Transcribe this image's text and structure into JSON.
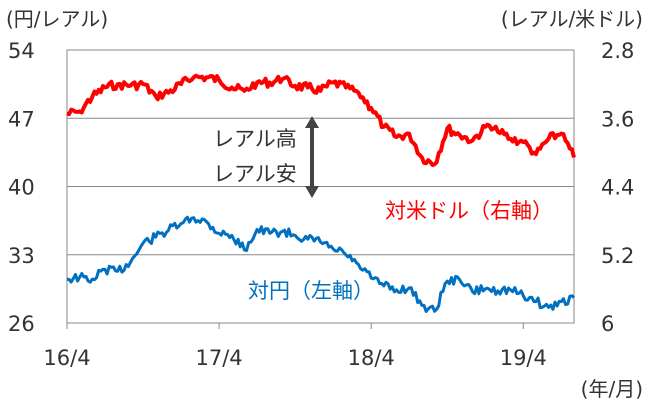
{
  "chart_data": {
    "type": "line",
    "left_unit": "(円/レアル)",
    "right_unit": "(レアル/米ドル)",
    "x_unit": "(年/月)",
    "x_ticks": [
      "16/4",
      "17/4",
      "18/4",
      "19/4"
    ],
    "y_left": {
      "ticks": [
        "54",
        "47",
        "40",
        "33",
        "26"
      ],
      "range": [
        26,
        54
      ]
    },
    "y_right": {
      "ticks": [
        "2.8",
        "3.6",
        "4.4",
        "5.2",
        "6"
      ],
      "range": [
        2.8,
        6.0
      ],
      "inverted": true
    },
    "grid": true,
    "annotation": {
      "upper": "レアル高",
      "lower": "レアル安"
    },
    "series": [
      {
        "name": "対米ドル（右軸）",
        "axis": "right",
        "color": "#ff0000",
        "x": [
          "2016-04",
          "2016-05",
          "2016-06",
          "2016-07",
          "2016-08",
          "2016-09",
          "2016-10",
          "2016-11",
          "2016-12",
          "2017-01",
          "2017-02",
          "2017-03",
          "2017-04",
          "2017-05",
          "2017-06",
          "2017-07",
          "2017-08",
          "2017-09",
          "2017-10",
          "2017-11",
          "2017-12",
          "2018-01",
          "2018-02",
          "2018-03",
          "2018-04",
          "2018-05",
          "2018-06",
          "2018-07",
          "2018-08",
          "2018-09",
          "2018-10",
          "2018-11",
          "2018-12",
          "2019-01",
          "2019-02",
          "2019-03",
          "2019-04",
          "2019-05",
          "2019-06",
          "2019-07",
          "2019-08"
        ],
        "values": [
          3.55,
          3.52,
          3.35,
          3.24,
          3.2,
          3.22,
          3.2,
          3.34,
          3.3,
          3.2,
          3.12,
          3.12,
          3.15,
          3.24,
          3.28,
          3.18,
          3.18,
          3.14,
          3.22,
          3.24,
          3.28,
          3.18,
          3.24,
          3.3,
          3.48,
          3.7,
          3.82,
          3.78,
          4.06,
          4.14,
          3.72,
          3.8,
          3.86,
          3.7,
          3.76,
          3.84,
          3.88,
          4.02,
          3.84,
          3.78,
          4.06
        ]
      },
      {
        "name": "対円（左軸）",
        "axis": "left",
        "color": "#0070c0",
        "x": [
          "2016-04",
          "2016-05",
          "2016-06",
          "2016-07",
          "2016-08",
          "2016-09",
          "2016-10",
          "2016-11",
          "2016-12",
          "2017-01",
          "2017-02",
          "2017-03",
          "2017-04",
          "2017-05",
          "2017-06",
          "2017-07",
          "2017-08",
          "2017-09",
          "2017-10",
          "2017-11",
          "2017-12",
          "2018-01",
          "2018-02",
          "2018-03",
          "2018-04",
          "2018-05",
          "2018-06",
          "2018-07",
          "2018-08",
          "2018-09",
          "2018-10",
          "2018-11",
          "2018-12",
          "2019-01",
          "2019-02",
          "2019-03",
          "2019-04",
          "2019-05",
          "2019-06",
          "2019-07",
          "2019-08"
        ],
        "values": [
          30.5,
          30.7,
          30.5,
          31.5,
          31.3,
          32.2,
          34.2,
          34.8,
          35.5,
          36.2,
          36.8,
          36.4,
          35.2,
          35.0,
          33.5,
          35.6,
          35.2,
          35.4,
          35.0,
          34.6,
          34.3,
          33.6,
          33.0,
          32.0,
          30.6,
          29.8,
          29.4,
          29.6,
          27.8,
          27.2,
          30.3,
          30.4,
          29.2,
          29.5,
          29.3,
          29.4,
          28.8,
          28.2,
          27.6,
          28.2,
          28.6
        ]
      }
    ],
    "labels": {
      "red": "対米ドル（右軸）",
      "blue": "対円（左軸）"
    }
  }
}
